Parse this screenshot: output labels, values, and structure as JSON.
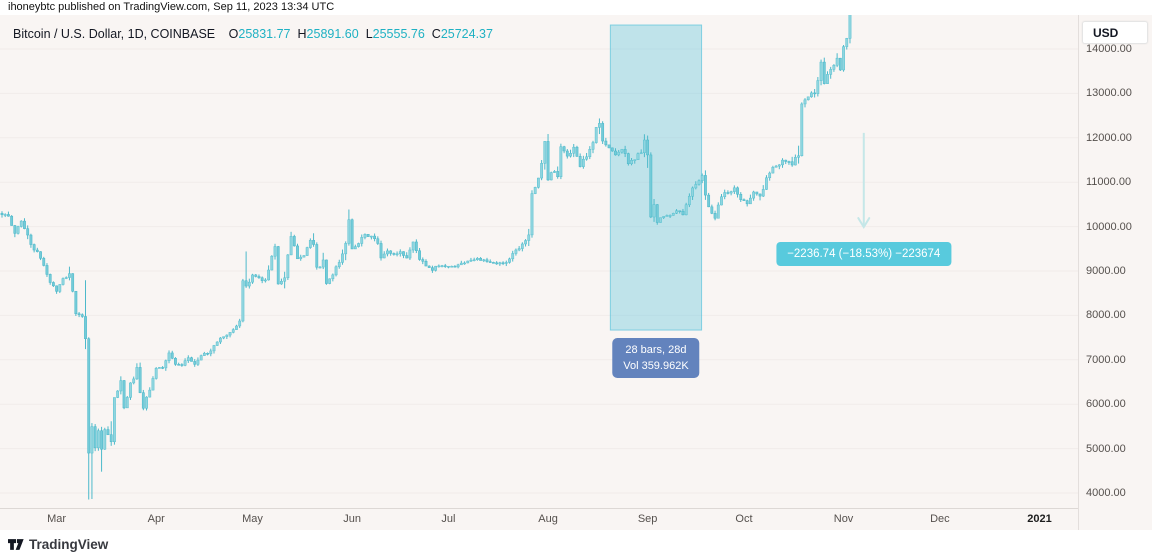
{
  "header": {
    "publish_line": "ihoneybtc published on TradingView.com, Sep 11, 2023 13:34 UTC"
  },
  "legend": {
    "title": "Bitcoin / U.S. Dollar, 1D, COINBASE",
    "ohlc": [
      {
        "label": "O",
        "value": "25831.77"
      },
      {
        "label": "H",
        "value": "25891.60"
      },
      {
        "label": "L",
        "value": "25555.76"
      },
      {
        "label": "C",
        "value": "25724.37"
      }
    ],
    "ohlc_value_color": "#1fb1c3"
  },
  "price_axis": {
    "currency_badge": "USD",
    "ticks": [
      {
        "price": 14000,
        "text": "14000.00"
      },
      {
        "price": 13000,
        "text": "13000.00"
      },
      {
        "price": 12000,
        "text": "12000.00"
      },
      {
        "price": 11000,
        "text": "11000.00"
      },
      {
        "price": 10000,
        "text": "10000.00"
      },
      {
        "price": 9000,
        "text": "9000.00"
      },
      {
        "price": 8000,
        "text": "8000.00"
      },
      {
        "price": 7000,
        "text": "7000.00"
      },
      {
        "price": 6000,
        "text": "6000.00"
      },
      {
        "price": 5000,
        "text": "5000.00"
      },
      {
        "price": 4000,
        "text": "4000.00"
      }
    ]
  },
  "time_axis": {
    "ticks": [
      {
        "text": "Mar",
        "day": 17
      },
      {
        "text": "Apr",
        "day": 48
      },
      {
        "text": "May",
        "day": 78
      },
      {
        "text": "Jun",
        "day": 109
      },
      {
        "text": "Jul",
        "day": 139
      },
      {
        "text": "Aug",
        "day": 170
      },
      {
        "text": "Sep",
        "day": 201
      },
      {
        "text": "Oct",
        "day": 231
      },
      {
        "text": "Nov",
        "day": 262
      },
      {
        "text": "Dec",
        "day": 292
      },
      {
        "text": "2021",
        "day": 323,
        "year": true
      }
    ]
  },
  "annotations": {
    "measure_band": {
      "day_start": 189.4,
      "day_end": 217.8,
      "price_top": 14540,
      "price_bottom": 7670,
      "band_color": "98,197,220",
      "label_line1": "28 bars, 28d",
      "label_line2": "Vol 359.962K",
      "label_bg": "#6383bd"
    },
    "change_label": {
      "text": "−2236.74 (−18.53%) −223674",
      "bg": "#58cadd",
      "anchor_price": 9660
    },
    "arrow": {
      "day": 268.3,
      "price_from": 12110,
      "price_to": 9990,
      "color": "#c5e7e8"
    }
  },
  "footer": {
    "brand": "TradingView"
  },
  "chart_data": {
    "type": "candlestick",
    "symbol": "Bitcoin / U.S. Dollar",
    "interval": "1D",
    "exchange": "COINBASE",
    "displayed_ohlc": {
      "open": "25831.77",
      "high": "25891.60",
      "low": "25555.76",
      "close": "25724.37"
    },
    "y_axis": {
      "min": 4000,
      "max": 14770,
      "tick_step": 1000,
      "unit": "USD",
      "grid": "faint"
    },
    "x_axis": {
      "months_visible": [
        "Mar",
        "Apr",
        "May",
        "Jun",
        "Jul",
        "Aug",
        "Sep",
        "Oct",
        "Nov",
        "Dec"
      ],
      "year_marker": "2021"
    },
    "price_path_waypoints": [
      [
        0,
        10300
      ],
      [
        2,
        10200
      ],
      [
        4,
        9850
      ],
      [
        6,
        10150
      ],
      [
        9,
        9600
      ],
      [
        12,
        9300
      ],
      [
        15,
        8750
      ],
      [
        17,
        8550
      ],
      [
        19,
        8800
      ],
      [
        21,
        8950
      ],
      [
        23,
        8050
      ],
      [
        25,
        7950
      ],
      [
        26,
        7900
      ],
      [
        27,
        4850
      ],
      [
        28,
        5550
      ],
      [
        29,
        5050
      ],
      [
        30,
        5350
      ],
      [
        31,
        5000
      ],
      [
        32,
        5400
      ],
      [
        33,
        5300
      ],
      [
        34,
        5050
      ],
      [
        35,
        6150
      ],
      [
        37,
        6450
      ],
      [
        38,
        5900
      ],
      [
        40,
        6450
      ],
      [
        42,
        6750
      ],
      [
        43,
        6250
      ],
      [
        44,
        5900
      ],
      [
        46,
        6350
      ],
      [
        48,
        6800
      ],
      [
        50,
        6850
      ],
      [
        52,
        7150
      ],
      [
        54,
        6900
      ],
      [
        56,
        6850
      ],
      [
        58,
        7050
      ],
      [
        60,
        6900
      ],
      [
        62,
        7100
      ],
      [
        64,
        7150
      ],
      [
        66,
        7300
      ],
      [
        68,
        7500
      ],
      [
        70,
        7550
      ],
      [
        72,
        7700
      ],
      [
        74,
        7780
      ],
      [
        75,
        8750
      ],
      [
        76,
        8620
      ],
      [
        78,
        8900
      ],
      [
        80,
        8870
      ],
      [
        82,
        8750
      ],
      [
        84,
        9350
      ],
      [
        85,
        9550
      ],
      [
        86,
        8720
      ],
      [
        88,
        8850
      ],
      [
        90,
        9750
      ],
      [
        92,
        9300
      ],
      [
        94,
        9380
      ],
      [
        96,
        9680
      ],
      [
        97,
        9520
      ],
      [
        98,
        9060
      ],
      [
        100,
        9170
      ],
      [
        101,
        8720
      ],
      [
        103,
        8900
      ],
      [
        105,
        9200
      ],
      [
        107,
        9580
      ],
      [
        108,
        10200
      ],
      [
        109,
        9520
      ],
      [
        111,
        9650
      ],
      [
        113,
        9800
      ],
      [
        115,
        9780
      ],
      [
        117,
        9620
      ],
      [
        118,
        9280
      ],
      [
        120,
        9450
      ],
      [
        122,
        9370
      ],
      [
        124,
        9430
      ],
      [
        126,
        9300
      ],
      [
        128,
        9650
      ],
      [
        130,
        9280
      ],
      [
        132,
        9110
      ],
      [
        134,
        9010
      ],
      [
        136,
        9140
      ],
      [
        139,
        9090
      ],
      [
        142,
        9130
      ],
      [
        145,
        9240
      ],
      [
        148,
        9280
      ],
      [
        151,
        9200
      ],
      [
        154,
        9160
      ],
      [
        157,
        9210
      ],
      [
        159,
        9390
      ],
      [
        161,
        9540
      ],
      [
        163,
        9700
      ],
      [
        164,
        9930
      ],
      [
        165,
        10770
      ],
      [
        166,
        10910
      ],
      [
        167,
        11100
      ],
      [
        168,
        11350
      ],
      [
        169,
        11810
      ],
      [
        170,
        11070
      ],
      [
        171,
        11240
      ],
      [
        173,
        11200
      ],
      [
        174,
        11760
      ],
      [
        176,
        11600
      ],
      [
        178,
        11750
      ],
      [
        180,
        11390
      ],
      [
        182,
        11560
      ],
      [
        184,
        11890
      ],
      [
        185,
        12250
      ],
      [
        186,
        12300
      ],
      [
        187,
        11950
      ],
      [
        189,
        11760
      ],
      [
        191,
        11640
      ],
      [
        193,
        11750
      ],
      [
        195,
        11450
      ],
      [
        197,
        11530
      ],
      [
        199,
        11700
      ],
      [
        200,
        11950
      ],
      [
        201,
        11420
      ],
      [
        202,
        10190
      ],
      [
        203,
        10450
      ],
      [
        204,
        10080
      ],
      [
        206,
        10250
      ],
      [
        208,
        10230
      ],
      [
        210,
        10350
      ],
      [
        212,
        10310
      ],
      [
        214,
        10720
      ],
      [
        216,
        10950
      ],
      [
        218,
        11080
      ],
      [
        220,
        10420
      ],
      [
        222,
        10230
      ],
      [
        224,
        10700
      ],
      [
        226,
        10780
      ],
      [
        228,
        10840
      ],
      [
        230,
        10620
      ],
      [
        232,
        10550
      ],
      [
        234,
        10790
      ],
      [
        236,
        10670
      ],
      [
        238,
        11060
      ],
      [
        240,
        11370
      ],
      [
        242,
        11420
      ],
      [
        244,
        11500
      ],
      [
        246,
        11360
      ],
      [
        248,
        11750
      ],
      [
        249,
        12800
      ],
      [
        251,
        12930
      ],
      [
        253,
        13050
      ],
      [
        255,
        13650
      ],
      [
        256,
        13270
      ],
      [
        258,
        13560
      ],
      [
        260,
        13800
      ],
      [
        261,
        13550
      ],
      [
        262,
        14020
      ],
      [
        263,
        14130
      ],
      [
        264,
        14850
      ],
      [
        265,
        15450
      ],
      [
        266,
        15300
      ],
      [
        267,
        15100
      ],
      [
        268,
        14800
      ]
    ],
    "wick_overrides": [
      {
        "day": 27,
        "low": 3855
      },
      {
        "day": 28,
        "low": 3865
      },
      {
        "day": 31,
        "low": 4480
      },
      {
        "day": 76,
        "high": 9440
      },
      {
        "day": 108,
        "high": 10385
      },
      {
        "day": 170,
        "high": 12085
      }
    ],
    "candle_colors": {
      "up_fill": "#90d5df",
      "up_stroke": "#57c0d0",
      "down_fill": "#74cbd8",
      "down_stroke": "#49b7c9",
      "wick": "#4db9ca"
    },
    "background": "#f9f5f3"
  }
}
